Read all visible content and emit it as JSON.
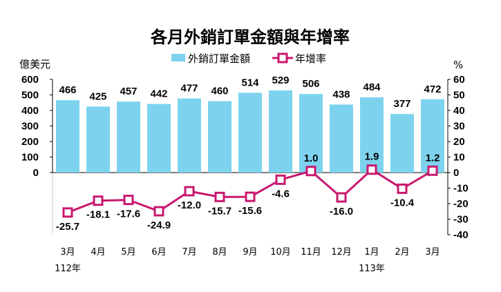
{
  "chart_data": {
    "type": "bar",
    "title": "各月外銷訂單金額與年增率",
    "left_unit": "億美元",
    "right_unit": "%",
    "categories": [
      "3月",
      "4月",
      "5月",
      "6月",
      "7月",
      "8月",
      "9月",
      "10月",
      "11月",
      "12月",
      "1月",
      "2月",
      "3月"
    ],
    "year_labels": [
      {
        "text": "112年",
        "category_index": 0
      },
      {
        "text": "113年",
        "category_index": 10
      }
    ],
    "series": [
      {
        "name": "外銷訂單金額",
        "type": "bar",
        "axis": "left",
        "color": "#7dd3ee",
        "values": [
          466,
          425,
          457,
          442,
          477,
          460,
          514,
          529,
          506,
          438,
          484,
          377,
          472
        ]
      },
      {
        "name": "年增率",
        "type": "line",
        "axis": "right",
        "color": "#c8186e",
        "values": [
          -25.7,
          -18.1,
          -17.6,
          -24.9,
          -12.0,
          -15.7,
          -15.6,
          -4.6,
          1.0,
          -16.0,
          1.9,
          -10.4,
          1.2
        ],
        "labels": [
          "-25.7",
          "-18.1",
          "-17.6",
          "-24.9",
          "-12.0",
          "-15.7",
          "-15.6",
          "-4.6",
          "1.0",
          "-16.0",
          "1.9",
          "-10.4",
          "1.2"
        ]
      }
    ],
    "left_axis": {
      "ylim": [
        0,
        600
      ],
      "ticks": [
        "0",
        "100",
        "200",
        "300",
        "400",
        "500",
        "600"
      ]
    },
    "right_axis": {
      "ylim": [
        -40,
        60
      ],
      "ticks": [
        "60",
        "50",
        "40",
        "30",
        "20",
        "10",
        "0",
        "-10",
        "-20",
        "-30",
        "-40"
      ]
    },
    "legend_position": "top-center",
    "grid": false
  }
}
